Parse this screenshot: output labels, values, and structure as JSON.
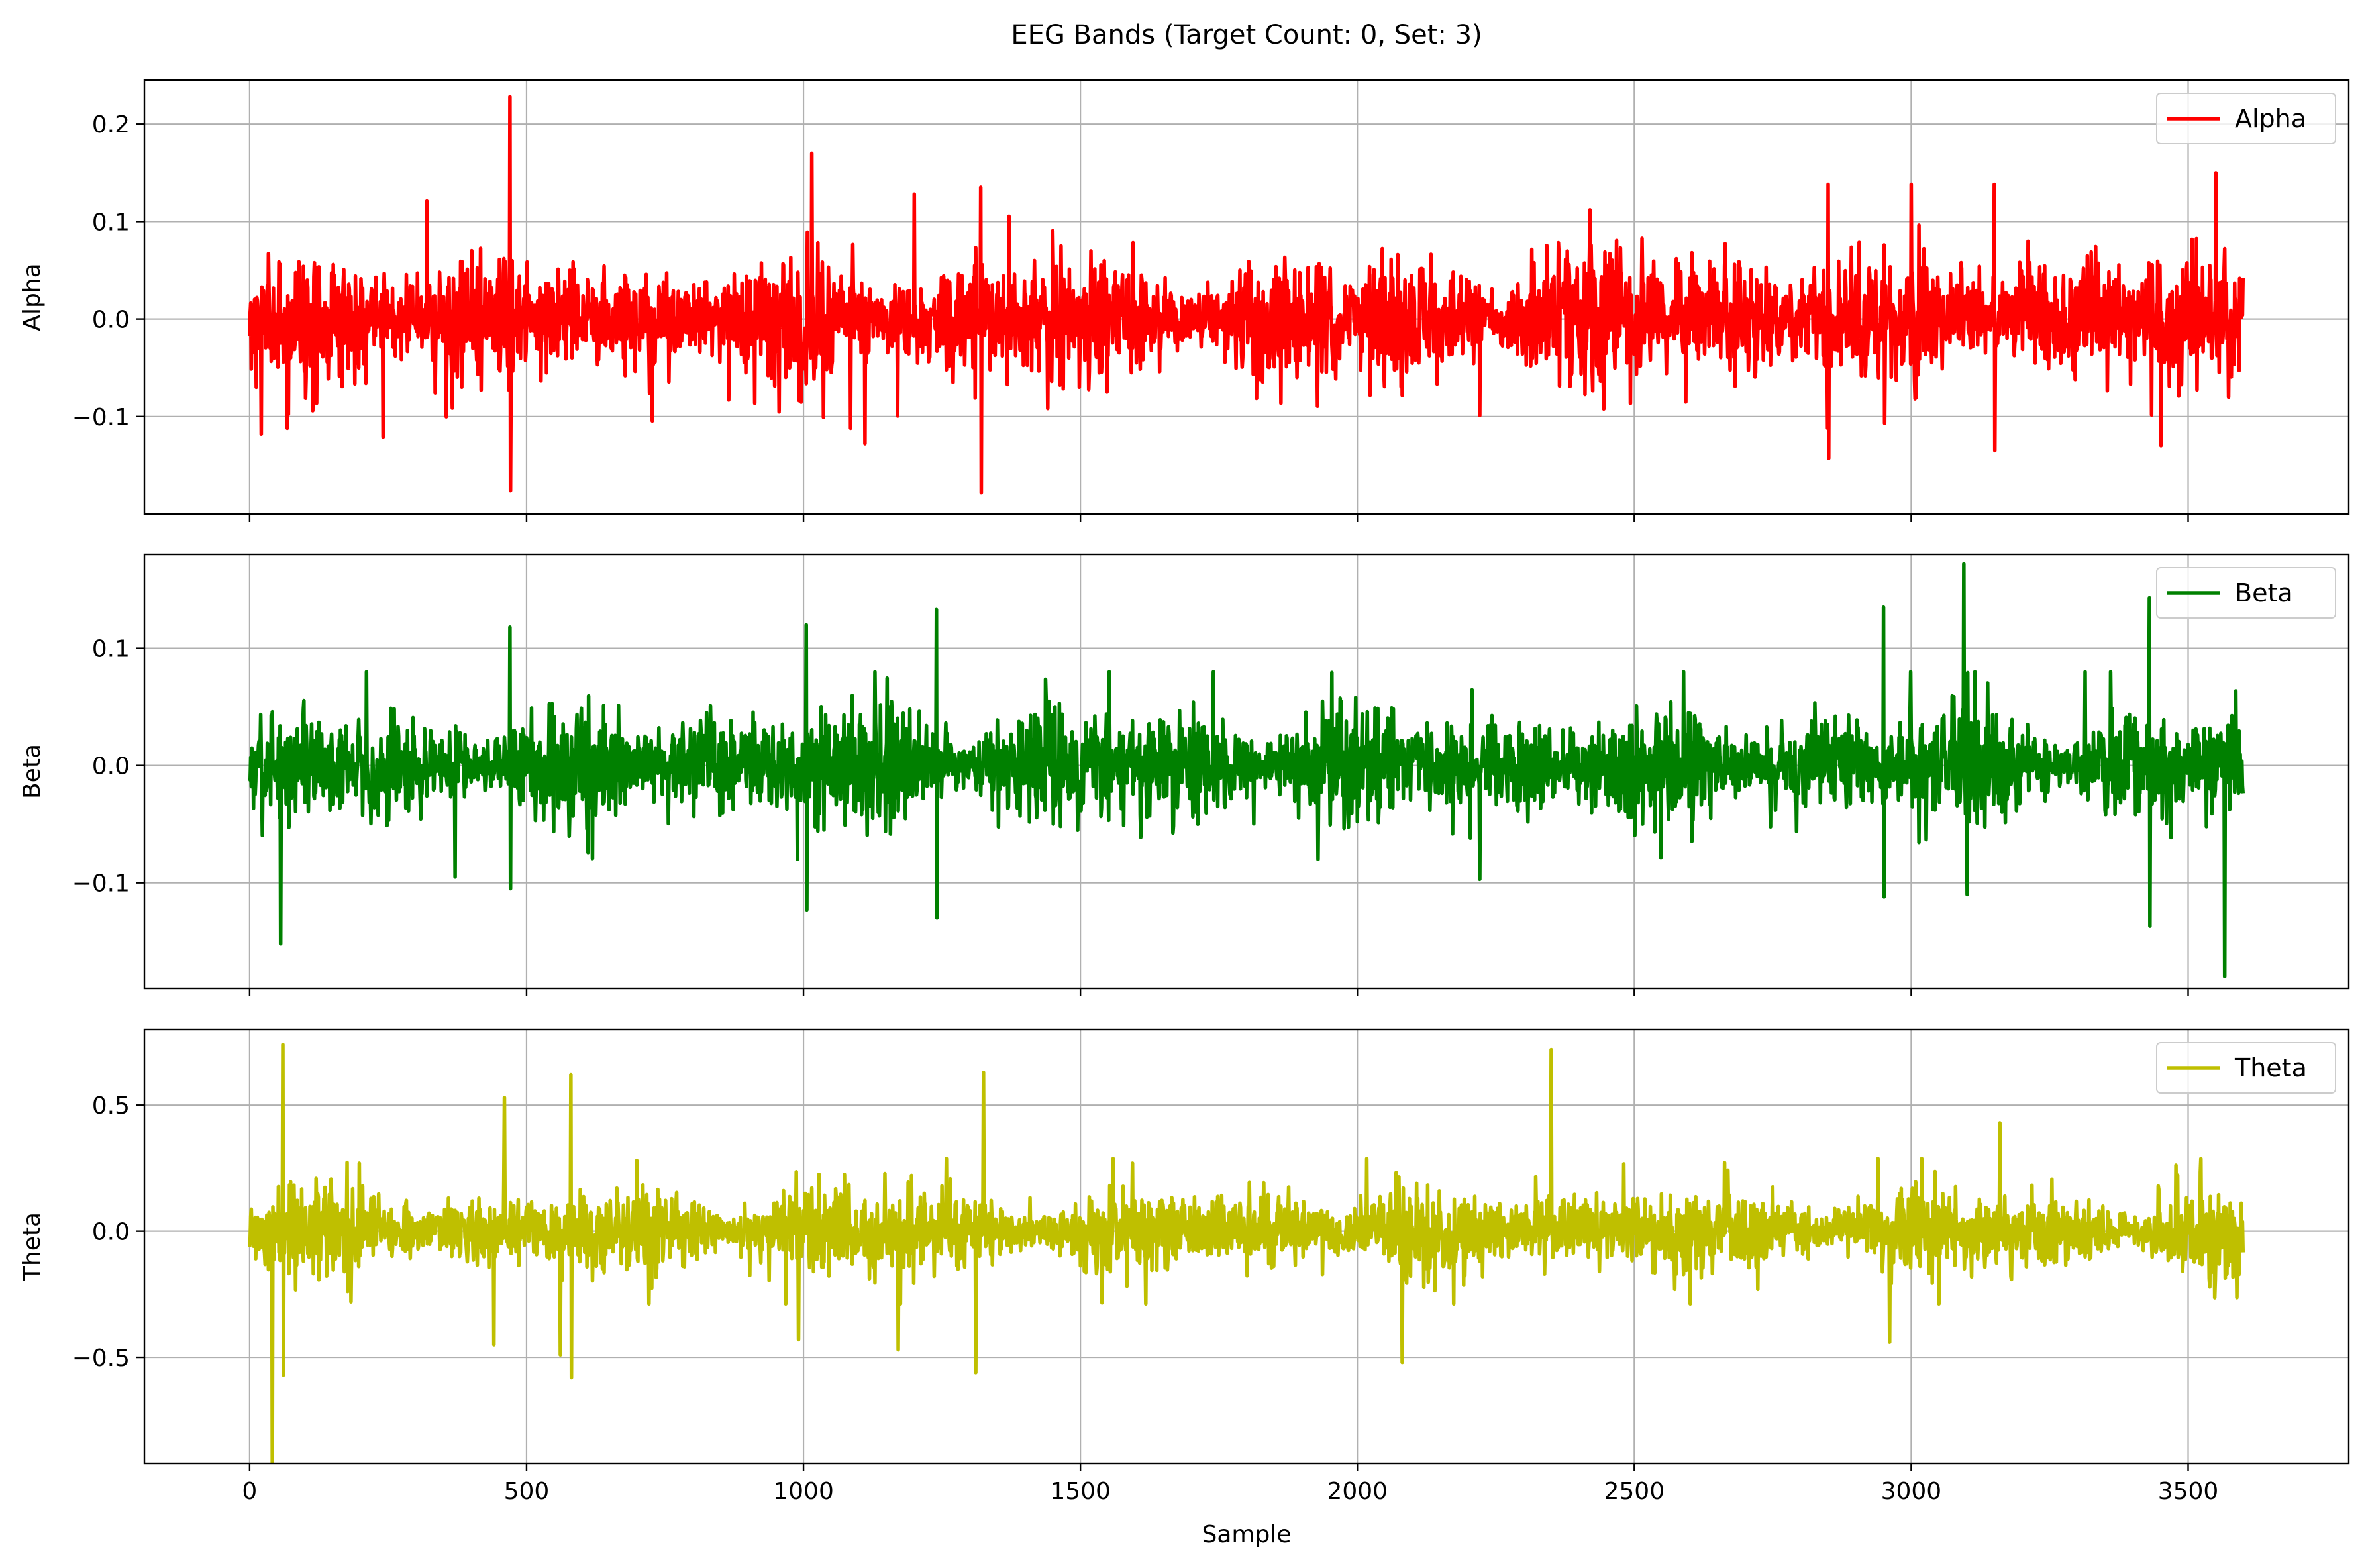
{
  "chart_data": {
    "type": "line",
    "title": "EEG Bands (Target Count: 0, Set: 3)",
    "xlabel": "Sample",
    "xlim": [
      -190,
      3790
    ],
    "x_ticks": [
      0,
      500,
      1000,
      1500,
      2000,
      2500,
      3000,
      3500
    ],
    "x_tick_labels": [
      "0",
      "500",
      "1000",
      "1500",
      "2000",
      "2500",
      "3000",
      "3500"
    ],
    "grid": true,
    "legend_position": "upper right",
    "shared_x": true,
    "n_samples": 3600,
    "panels": [
      {
        "ylabel": "Alpha",
        "ylim": [
          -0.2,
          0.245
        ],
        "y_ticks": [
          -0.1,
          0.0,
          0.1,
          0.2
        ],
        "y_tick_labels": [
          "−0.1",
          "0.0",
          "0.1",
          "0.2"
        ],
        "series": [
          {
            "name": "Alpha",
            "color": "#ff0000",
            "typical_amplitude": 0.035,
            "peaks": [
              [
                470,
                0.228
              ],
              [
                470,
                -0.176
              ],
              [
                1015,
                0.17
              ],
              [
                1320,
                -0.178
              ],
              [
                1320,
                0.135
              ],
              [
                3000,
                0.138
              ],
              [
                3150,
                0.138
              ],
              [
                3150,
                -0.135
              ],
              [
                3550,
                0.15
              ],
              [
                3450,
                -0.13
              ],
              [
                2850,
                -0.143
              ],
              [
                2850,
                0.138
              ],
              [
                20,
                -0.118
              ],
              [
                240,
                -0.121
              ],
              [
                1110,
                -0.128
              ],
              [
                320,
                0.121
              ],
              [
                1200,
                0.128
              ]
            ]
          }
        ]
      },
      {
        "ylabel": "Beta",
        "ylim": [
          -0.19,
          0.18
        ],
        "y_ticks": [
          -0.1,
          0.0,
          0.1
        ],
        "y_tick_labels": [
          "−0.1",
          "0.0",
          "0.1"
        ],
        "series": [
          {
            "name": "Beta",
            "color": "#008000",
            "typical_amplitude": 0.025,
            "peaks": [
              [
                3095,
                0.172
              ],
              [
                3565,
                -0.18
              ],
              [
                55,
                -0.152
              ],
              [
                1240,
                0.133
              ],
              [
                1240,
                -0.13
              ],
              [
                2950,
                0.135
              ],
              [
                2950,
                -0.112
              ],
              [
                3430,
                0.143
              ],
              [
                3430,
                -0.137
              ],
              [
                1005,
                -0.123
              ],
              [
                1005,
                0.12
              ],
              [
                470,
                0.118
              ],
              [
                470,
                -0.105
              ],
              [
                3100,
                -0.11
              ],
              [
                2220,
                -0.097
              ],
              [
                370,
                -0.095
              ]
            ]
          }
        ]
      },
      {
        "ylabel": "Theta",
        "ylim": [
          -0.92,
          0.8
        ],
        "y_ticks": [
          -0.5,
          0.0,
          0.5
        ],
        "y_tick_labels": [
          "−0.5",
          "0.0",
          "0.5"
        ],
        "series": [
          {
            "name": "Theta",
            "color": "#bfbf00",
            "typical_amplitude": 0.09,
            "peaks": [
              [
                40,
                -0.92
              ],
              [
                60,
                0.74
              ],
              [
                60,
                -0.57
              ],
              [
                2350,
                0.72
              ],
              [
                580,
                0.62
              ],
              [
                580,
                -0.58
              ],
              [
                1325,
                0.63
              ],
              [
                1310,
                -0.56
              ],
              [
                460,
                0.53
              ],
              [
                560,
                -0.49
              ],
              [
                1170,
                -0.47
              ],
              [
                2080,
                -0.52
              ],
              [
                3160,
                0.43
              ],
              [
                990,
                -0.43
              ],
              [
                440,
                -0.45
              ],
              [
                2960,
                -0.44
              ]
            ]
          }
        ]
      }
    ]
  }
}
